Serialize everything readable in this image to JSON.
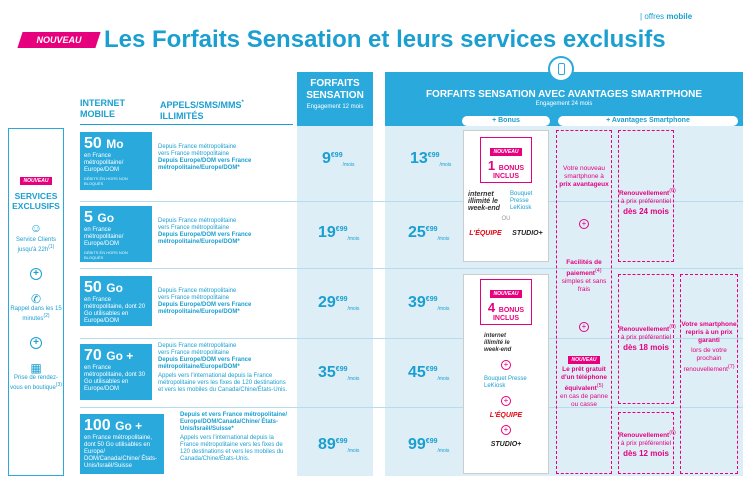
{
  "topbar": {
    "separator": "|",
    "label1": "offres",
    "label2": "mobile"
  },
  "badge": "NOUVEAU",
  "title": "Les Forfaits Sensation et   leurs services exclusifs",
  "headers": {
    "internet": "INTERNET MOBILE",
    "calls": "APPELS/SMS/MMS",
    "calls_sup": "*",
    "calls2": "ILLIMITÉS",
    "sensation_title": "FORFAITS SENSATION",
    "sensation_sub": "Engagement 12 mois",
    "avantages_title": "FORFAITS SENSATION AVEC AVANTAGES SMARTPHONE",
    "avantages_sub": "Engagement 24 mois",
    "bonus_label": "+ Bonus",
    "avantages_label": "+ Avantages Smartphone"
  },
  "left": {
    "badge": "NOUVEAU",
    "title": "SERVICES EXCLUSIFS",
    "service1": "Service Clients jusqu'à 22h",
    "service1_sup": "(1)",
    "service2": "Rappel dans les 15 minutes",
    "service2_sup": "(2)",
    "service3": "Prise de rendez-vous en boutique",
    "service3_sup": "(3)",
    "plus": "+"
  },
  "plans": [
    {
      "data": "50",
      "unit": "Mo",
      "desc": "en France métropolitaine/ Europe/DOM",
      "tiny": "DÉBITS ÉN HORS NON BLOQUÉS",
      "calls_l1": "Depuis France métropolitaine",
      "calls_l2": "vers France métropolitaine",
      "calls_b": "Depuis Europe/DOM vers France métropolitaine/Europe/DOM*",
      "calls_extra": "",
      "p1_int": "9",
      "p1_dec": "€99",
      "p2_int": "13",
      "p2_dec": "€99",
      "per": "/mois"
    },
    {
      "data": "5",
      "unit": "Go",
      "desc": "en France métropolitaine/ Europe/DOM",
      "tiny": "DÉBITS ÉN HORS NON BLOQUÉS",
      "calls_l1": "Depuis France métropolitaine",
      "calls_l2": "vers France métropolitaine",
      "calls_b": "Depuis Europe/DOM vers France métropolitaine/Europe/DOM*",
      "calls_extra": "",
      "p1_int": "19",
      "p1_dec": "€99",
      "p2_int": "25",
      "p2_dec": "€99",
      "per": "/mois"
    },
    {
      "data": "50",
      "unit": "Go",
      "desc": "en France métropolitaine, dont 20 Go utilisables en Europe/DOM",
      "tiny": "",
      "calls_l1": "Depuis France métropolitaine",
      "calls_l2": "vers France métropolitaine",
      "calls_b": "Depuis Europe/DOM vers France métropolitaine/Europe/DOM*",
      "calls_extra": "",
      "p1_int": "29",
      "p1_dec": "€99",
      "p2_int": "39",
      "p2_dec": "€99",
      "per": "/mois"
    },
    {
      "data": "70",
      "unit": "Go +",
      "desc": "en France métropolitaine, dont 30 Go utilisables en Europe/DOM",
      "tiny": "",
      "calls_l1": "Depuis France métropolitaine",
      "calls_l2": "vers France métropolitaine",
      "calls_b": "Depuis Europe/DOM vers France métropolitaine/Europe/DOM*",
      "calls_extra": "Appels vers l'international depuis la France métropolitaine vers les fixes de 120 destinations et vers les mobiles du Canada/Chine/États-Unis.",
      "p1_int": "35",
      "p1_dec": "€99",
      "p2_int": "45",
      "p2_dec": "€99",
      "per": "/mois"
    },
    {
      "data": "100",
      "unit": "Go +",
      "desc": "en France métropolitaine, dont 50 Go utilisables en Europe/ DOM/Canada/Chine/ États-Unis/Israël/Suisse",
      "tiny": "",
      "calls_l1": "",
      "calls_l2": "",
      "calls_b": "Depuis et vers France métropolitaine/ Europe/DOM/Canada/Chine/ États-Unis/Israël/Suisse*",
      "calls_extra": "Appels vers l'international depuis la France métropolitaine vers les fixes de 120 destinations et vers les mobiles du Canada/Chine/États-Unis.",
      "p1_int": "89",
      "p1_dec": "€99",
      "p2_int": "99",
      "p2_dec": "€99",
      "per": "/mois"
    }
  ],
  "bonus": {
    "box1_num": "1",
    "box1_text": "BONUS",
    "box1_sub": "INCLUS",
    "box2_num": "4",
    "box2_text": "BONUS",
    "box2_sub": "INCLUS",
    "internet": "internet illimité le week-end",
    "bouquet": "Bouquet Presse",
    "bouquet_sub": "LeKiosk",
    "equipe": "L'ÉQUIPE",
    "studio": "STUDIO+",
    "ou": "OU",
    "plus": "+"
  },
  "avantages": {
    "a1": "Votre nouveau smartphone à",
    "a1b": "prix avantageux",
    "a2": "Facilités de paiement",
    "a2_sup": "(4)",
    "a2b": "simples et sans frais",
    "a3_badge": "NOUVEAU",
    "a3": "Le prêt gratuit d'un téléphone équivalent",
    "a3_sup": "(5)",
    "a3b": "en cas de panne ou casse",
    "r1": "Renouvellement",
    "r1_sup": "(6)",
    "r1b": "à prix préférentiel",
    "r1c": "dès 24 mois",
    "r2c": "dès 18 mois",
    "r3c": "dès 12 mois",
    "rep": "Votre smartphone repris à un prix garanti",
    "rep2": "lors de votre prochain renouvellement",
    "rep_sup": "(7)",
    "plus": "+"
  }
}
